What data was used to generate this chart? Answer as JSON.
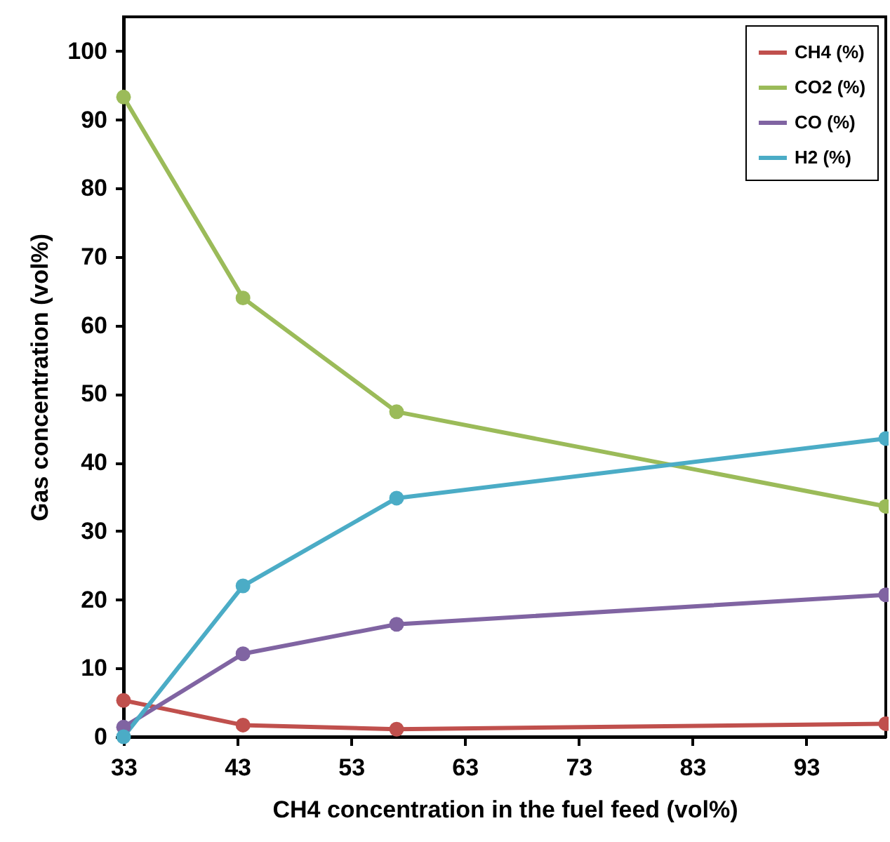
{
  "chart_data": {
    "type": "line",
    "xlabel": "CH4 concentration in the fuel feed (vol%)",
    "ylabel": "Gas concentration (vol%)",
    "x": [
      33,
      43.5,
      57,
      100
    ],
    "series": [
      {
        "name": "CH4 (%)",
        "color": "#c0504d",
        "values": [
          5.3,
          1.7,
          1.1,
          1.9
        ]
      },
      {
        "name": "CO2 (%)",
        "color": "#9bbb59",
        "values": [
          93.3,
          64,
          47.4,
          33.6
        ]
      },
      {
        "name": "CO (%)",
        "color": "#8064a2",
        "values": [
          1.4,
          12.1,
          16.4,
          20.7
        ]
      },
      {
        "name": "H2 (%)",
        "color": "#4bacc6",
        "values": [
          0,
          22,
          34.8,
          43.5
        ]
      }
    ],
    "xlim": [
      33,
      100
    ],
    "xticks": [
      33,
      43,
      53,
      63,
      73,
      83,
      93
    ],
    "ylim": [
      0,
      105
    ],
    "yticks": [
      0,
      10,
      20,
      30,
      40,
      50,
      60,
      70,
      80,
      90,
      100
    ],
    "grid": false,
    "legend": "top right",
    "marker": "circle",
    "line_style": "solid"
  }
}
